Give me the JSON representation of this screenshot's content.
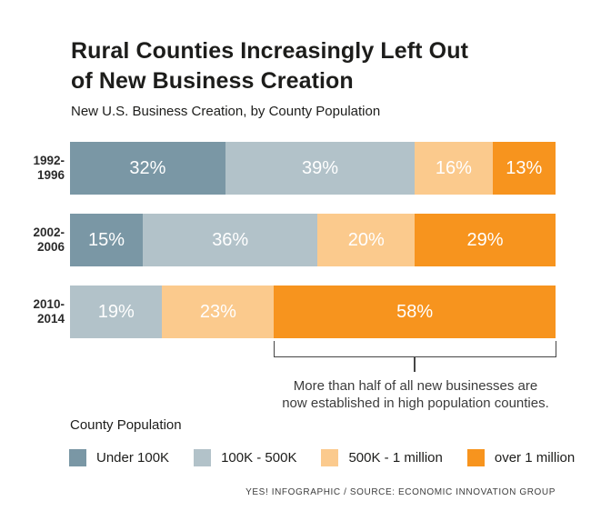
{
  "header": {
    "title_lines": [
      "Rural Counties Increasingly Left Out",
      "of New Business Creation"
    ],
    "subtitle": "New U.S. Business Creation, by County Population"
  },
  "chart_data": {
    "type": "bar",
    "stacked": true,
    "orientation": "horizontal",
    "unit": "%",
    "xlim": [
      0,
      100
    ],
    "grid": false,
    "value_label_style": "white, centered inside segments",
    "categories": [
      "1992-1996",
      "2002-2006",
      "2010-2014"
    ],
    "category_label_lines": [
      [
        "1992-",
        "1996"
      ],
      [
        "2002-",
        "2006"
      ],
      [
        "2010-",
        "2014"
      ]
    ],
    "series": [
      {
        "name": "Under 100K",
        "color": "#7a97a5",
        "values": [
          32,
          15,
          0
        ]
      },
      {
        "name": "100K - 500K",
        "color": "#b2c2c9",
        "values": [
          39,
          36,
          19
        ]
      },
      {
        "name": "500K - 1 million",
        "color": "#fbca8d",
        "values": [
          16,
          20,
          23
        ]
      },
      {
        "name": "over 1 million",
        "color": "#f7941e",
        "values": [
          13,
          29,
          58
        ]
      }
    ]
  },
  "annotation": {
    "line1": "More than half of all new businesses are",
    "line2": "now established in high population counties."
  },
  "legend": {
    "title": "County Population"
  },
  "footer": {
    "credit": "YES! INFOGRAPHIC / SOURCE: ECONOMIC INNOVATION GROUP"
  },
  "colors": {
    "text": "#1d1d1b",
    "annotation_line": "#454545",
    "background": "#ffffff"
  }
}
